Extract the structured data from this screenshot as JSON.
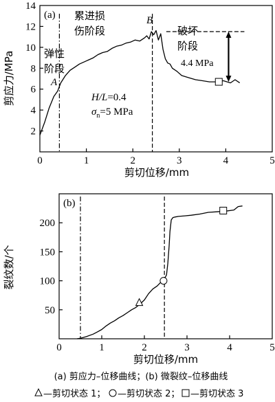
{
  "chart_data": [
    {
      "type": "line",
      "panel_label": "(a)",
      "xlabel": "剪切位移/mm",
      "ylabel": "剪应力/MPa",
      "xlim": [
        0,
        5
      ],
      "ylim": [
        0,
        14
      ],
      "xticks": [
        0,
        1,
        2,
        3,
        4,
        5
      ],
      "yticks": [
        2,
        4,
        6,
        8,
        10,
        12,
        14
      ],
      "series": [
        {
          "x": [
            0.0,
            0.1,
            0.2,
            0.3,
            0.38,
            0.45,
            0.55,
            0.65,
            0.75,
            0.85,
            0.95,
            1.05,
            1.15,
            1.25,
            1.35,
            1.45,
            1.55,
            1.65,
            1.75,
            1.85,
            1.95,
            2.05,
            2.15,
            2.25,
            2.3,
            2.35,
            2.4,
            2.45,
            2.5,
            2.55,
            2.6,
            2.65,
            2.7,
            2.75,
            2.8,
            2.85,
            2.95,
            3.05,
            3.2,
            3.35,
            3.5,
            3.65,
            3.8,
            3.95,
            4.1,
            4.2,
            4.3
          ],
          "y": [
            1.6,
            2.8,
            4.2,
            5.3,
            5.8,
            6.6,
            7.3,
            7.8,
            8.1,
            8.4,
            8.6,
            8.8,
            9.0,
            9.3,
            9.5,
            9.6,
            9.9,
            10.1,
            10.2,
            10.4,
            10.5,
            10.7,
            10.6,
            10.9,
            11.1,
            10.8,
            11.5,
            11.2,
            11.6,
            10.7,
            11.3,
            9.8,
            8.9,
            8.5,
            8.4,
            8.0,
            7.7,
            7.3,
            7.1,
            6.9,
            6.8,
            6.7,
            6.7,
            6.8,
            6.6,
            6.9,
            6.6
          ]
        }
      ],
      "markers": [
        {
          "shape": "square",
          "x": 3.85,
          "y": 6.7
        }
      ],
      "vlines": [
        {
          "x": 0.42,
          "style": "dashdot"
        },
        {
          "x": 2.42,
          "style": "dash"
        }
      ],
      "annotations": {
        "point_a": "A",
        "point_b": "B",
        "stage_elastic": [
          "弹性",
          "阶段"
        ],
        "stage_damage": [
          "累进损",
          "伤阶段"
        ],
        "stage_failure": [
          "破坏",
          "阶段"
        ],
        "drop_value": "4.4 MPa",
        "drop_level": 11.5,
        "param_ratio_label": "H/L",
        "param_ratio_value": "=0.4",
        "param_sigma_symbol": "σ",
        "param_sigma_sub": "n",
        "param_sigma_value": "=5 MPa"
      }
    },
    {
      "type": "line",
      "panel_label": "(b)",
      "xlabel": "剪切位移/mm",
      "ylabel": "裂纹数/个",
      "xlim": [
        0,
        5
      ],
      "ylim": [
        0,
        250
      ],
      "xticks": [
        0,
        1,
        2,
        3,
        4,
        5
      ],
      "yticks": [
        50,
        100,
        150,
        200
      ],
      "series": [
        {
          "x": [
            0.42,
            0.5,
            0.65,
            0.8,
            0.9,
            1.0,
            1.1,
            1.2,
            1.3,
            1.4,
            1.5,
            1.6,
            1.7,
            1.8,
            1.9,
            2.0,
            2.1,
            2.2,
            2.3,
            2.42,
            2.48,
            2.52,
            2.55,
            2.58,
            2.6,
            2.63,
            2.67,
            2.72,
            2.8,
            2.95,
            3.1,
            3.3,
            3.5,
            3.7,
            3.9,
            4.1,
            4.2,
            4.3
          ],
          "y": [
            0,
            1,
            4,
            8,
            12,
            16,
            22,
            27,
            31,
            36,
            40,
            45,
            50,
            54,
            60,
            67,
            78,
            86,
            91,
            100,
            105,
            110,
            130,
            160,
            185,
            205,
            209,
            210,
            211,
            212,
            213,
            215,
            218,
            219,
            220,
            222,
            228,
            229
          ]
        }
      ],
      "markers": [
        {
          "shape": "triangle",
          "x": 1.88,
          "y": 62
        },
        {
          "shape": "circle",
          "x": 2.45,
          "y": 100
        },
        {
          "shape": "square",
          "x": 3.85,
          "y": 221
        }
      ],
      "vlines": [
        {
          "x": 0.5,
          "style": "dashdot"
        },
        {
          "x": 2.47,
          "style": "dash"
        }
      ]
    }
  ],
  "caption": "(a) 剪应力–位移曲线；(b) 微裂纹–位移曲线",
  "legend": [
    {
      "shape": "triangle",
      "text": "—剪切状态 1；"
    },
    {
      "shape": "circle",
      "text": "—剪切状态 2；"
    },
    {
      "shape": "square",
      "text": "—剪切状态 3"
    }
  ]
}
